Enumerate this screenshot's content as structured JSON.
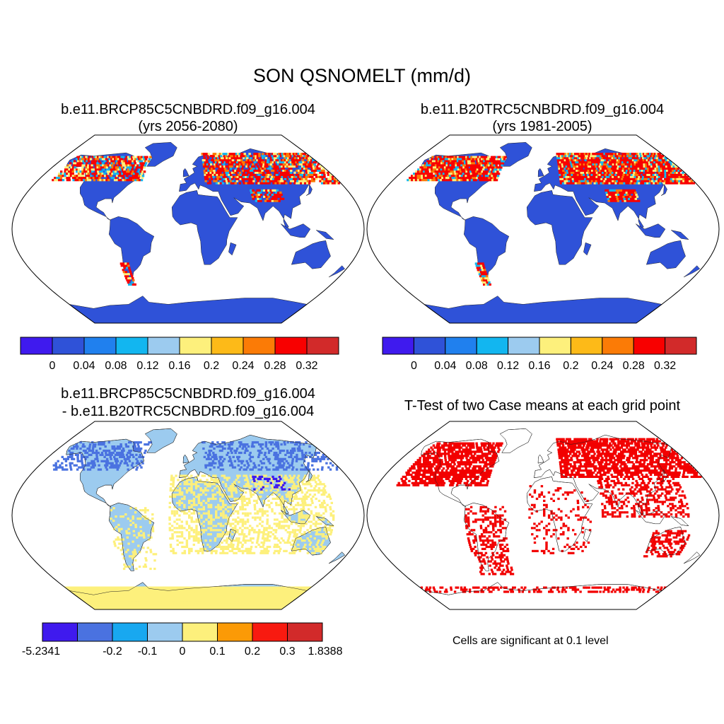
{
  "figure": {
    "title": "SON QSNOMELT (mm/d)"
  },
  "panels": [
    {
      "title_line1": "b.e11.BRCP85C5CNBDRD.f09_g16.004",
      "title_line2": "(yrs 2056-2080)",
      "colorbar": {
        "colors": [
          "#3f1aee",
          "#2f52d8",
          "#2080ee",
          "#12b6f0",
          "#9ccbef",
          "#fdf07c",
          "#fdba18",
          "#fb7b06",
          "#f80000",
          "#d22a2a"
        ],
        "labels": [
          "0",
          "0.04",
          "0.08",
          "0.12",
          "0.16",
          "0.2",
          "0.24",
          "0.28",
          "0.32"
        ]
      },
      "land_color": "#2f52d8"
    },
    {
      "title_line1": "b.e11.B20TRC5CNBDRD.f09_g16.004",
      "title_line2": "(yrs 1981-2005)",
      "colorbar": {
        "colors": [
          "#3f1aee",
          "#2f52d8",
          "#2080ee",
          "#12b6f0",
          "#9ccbef",
          "#fdf07c",
          "#fdba18",
          "#fb7b06",
          "#f80000",
          "#d22a2a"
        ],
        "labels": [
          "0",
          "0.04",
          "0.08",
          "0.12",
          "0.16",
          "0.2",
          "0.24",
          "0.28",
          "0.32"
        ]
      },
      "land_color": "#2f52d8"
    },
    {
      "title_line1": "b.e11.BRCP85C5CNBDRD.f09_g16.004",
      "title_line2": "- b.e11.B20TRC5CNBDRD.f09_g16.004",
      "colorbar": {
        "colors": [
          "#3f1aee",
          "#4a72e0",
          "#18a8f0",
          "#9ccbef",
          "#fdf07c",
          "#fb9a06",
          "#f81a10",
          "#d22a2a"
        ],
        "labels": [
          "-5.2341",
          "-0.2",
          "-0.1",
          "0",
          "0.1",
          "0.2",
          "0.3",
          "1.8388"
        ]
      },
      "land_color": "#9ccbef"
    },
    {
      "title_line1": "T-Test of two Case means at each grid point",
      "note": "Cells are significant at 0.1 level",
      "land_color": "#ffffff",
      "signif_color": "#f20000"
    }
  ]
}
